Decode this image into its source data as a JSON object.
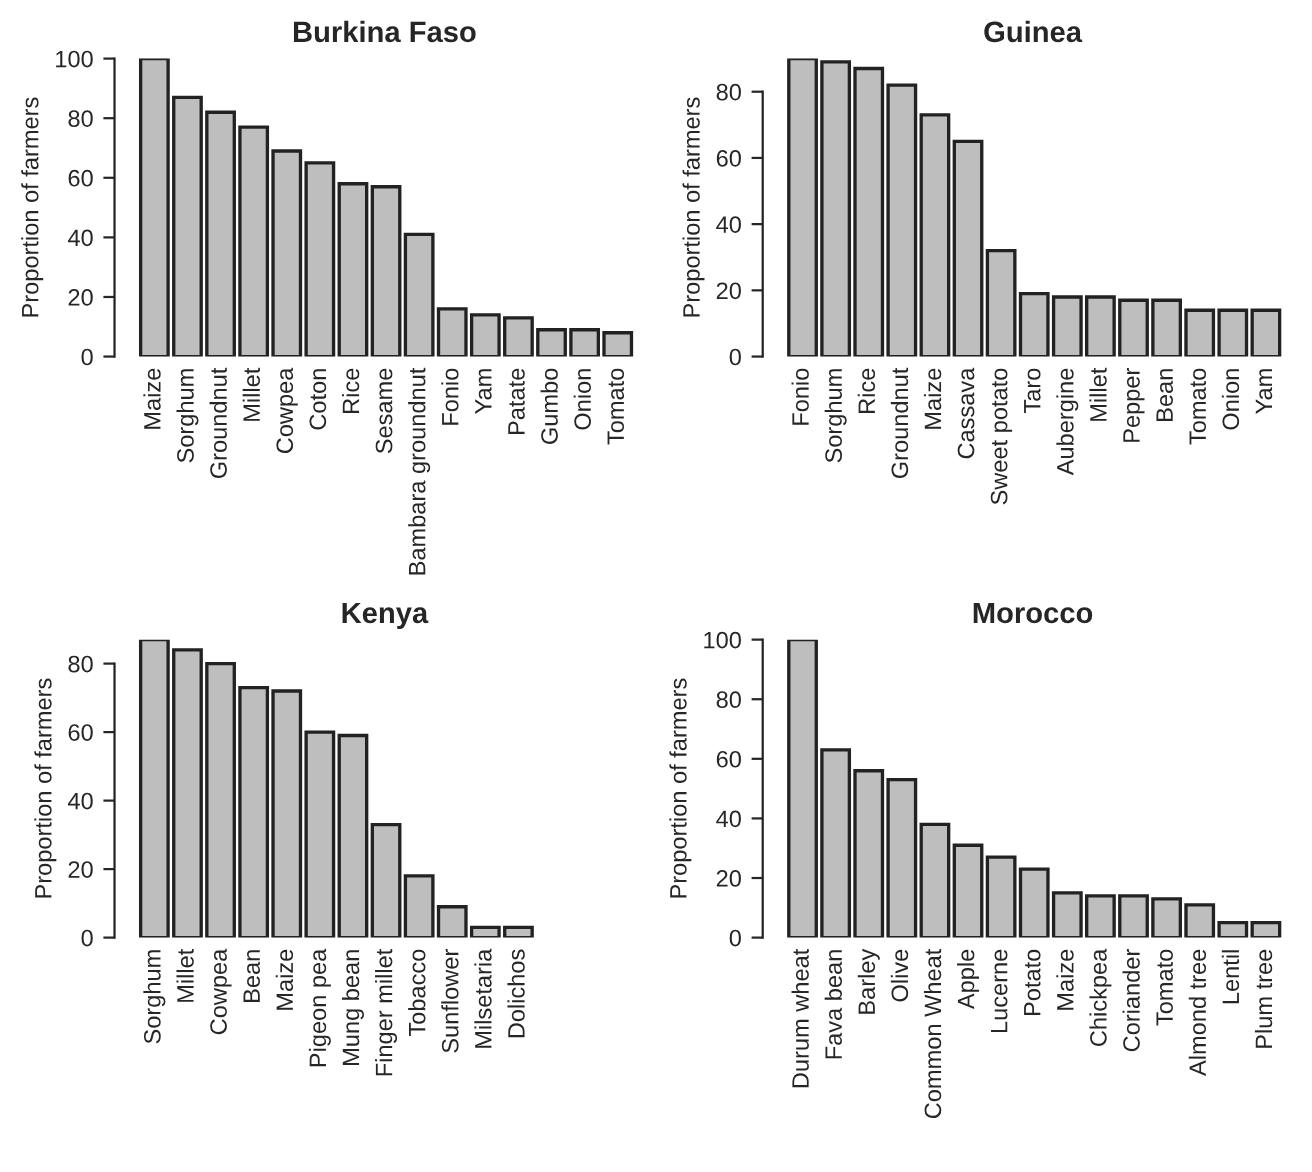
{
  "chart_data": [
    {
      "type": "bar",
      "title": "Burkina Faso",
      "ylabel": "Proportion of farmers",
      "categories": [
        "Maize",
        "Sorghum",
        "Groundnut",
        "Millet",
        "Cowpea",
        "Coton",
        "Rice",
        "Sesame",
        "Bambara groundnut",
        "Fonio",
        "Yam",
        "Patate",
        "Gumbo",
        "Onion",
        "Tomato"
      ],
      "values": [
        100,
        87,
        82,
        77,
        69,
        65,
        58,
        57,
        41,
        16,
        14,
        13,
        9,
        9,
        8
      ],
      "color": "#bebebe",
      "ylim": [
        0,
        100
      ],
      "yticks": [
        0,
        20,
        40,
        60,
        80,
        100
      ]
    },
    {
      "type": "bar",
      "title": "Guinea",
      "ylabel": "Proportion of farmers",
      "categories": [
        "Fonio",
        "Sorghum",
        "Rice",
        "Groundnut",
        "Maize",
        "Cassava",
        "Sweet potato",
        "Taro",
        "Aubergine",
        "Millet",
        "Pepper",
        "Bean",
        "Tomato",
        "Onion",
        "Yam"
      ],
      "values": [
        90,
        89,
        87,
        82,
        73,
        65,
        32,
        19,
        18,
        18,
        17,
        17,
        14,
        14,
        14
      ],
      "color": "#bebebe",
      "ylim": [
        0,
        90
      ],
      "yticks": [
        0,
        20,
        40,
        60,
        80
      ]
    },
    {
      "type": "bar",
      "title": "Kenya",
      "ylabel": "Proportion of farmers",
      "categories": [
        "Sorghum",
        "Millet",
        "Cowpea",
        "Bean",
        "Maize",
        "Pigeon pea",
        "Mung bean",
        "Finger millet",
        "Tobacco",
        "Sunflower",
        "Milsetaria",
        "Dolichos"
      ],
      "values": [
        87,
        84,
        80,
        73,
        72,
        60,
        59,
        33,
        18,
        9,
        3,
        3
      ],
      "color": "#bebebe",
      "ylim": [
        0,
        87
      ],
      "yticks": [
        0,
        20,
        40,
        60,
        80
      ]
    },
    {
      "type": "bar",
      "title": "Morocco",
      "ylabel": "Proportion of farmers",
      "categories": [
        "Durum wheat",
        "Fava bean",
        "Barley",
        "Olive",
        "Common Wheat",
        "Apple",
        "Lucerne",
        "Potato",
        "Maize",
        "Chickpea",
        "Coriander",
        "Tomato",
        "Almond tree",
        "Lentil",
        "Plum tree"
      ],
      "values": [
        100,
        63,
        56,
        53,
        38,
        31,
        27,
        23,
        15,
        14,
        14,
        13,
        11,
        5,
        5
      ],
      "color": "#bebebe",
      "ylim": [
        0,
        100
      ],
      "yticks": [
        0,
        20,
        40,
        60,
        80,
        100
      ]
    }
  ]
}
